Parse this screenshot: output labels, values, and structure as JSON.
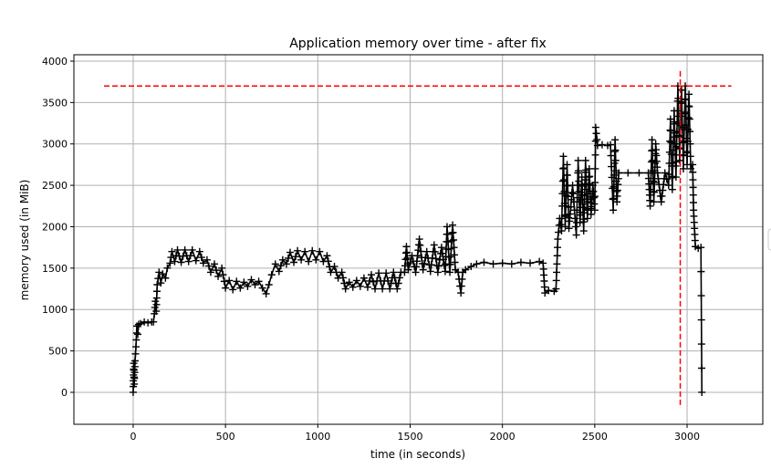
{
  "chart_data": {
    "type": "line",
    "title": "Application memory over time - after fix",
    "xlabel": "time (in seconds)",
    "ylabel": "memory used (in MiB)",
    "xlim": [
      -321,
      3410
    ],
    "ylim": [
      -386,
      4077
    ],
    "xticks": [
      0,
      500,
      1000,
      1500,
      2000,
      2500,
      3000
    ],
    "yticks": [
      0,
      500,
      1000,
      1500,
      2000,
      2500,
      3000,
      3500,
      4000
    ],
    "grid": true,
    "marker": "+",
    "colors": {
      "series": "#000000",
      "reference": "#ff0000",
      "grid": "#b0b0b0"
    },
    "series": [
      {
        "points": [
          [
            0,
            0
          ],
          [
            3,
            350
          ],
          [
            6,
            100
          ],
          [
            10,
            380
          ],
          [
            15,
            550
          ],
          [
            20,
            800
          ],
          [
            25,
            700
          ],
          [
            30,
            820
          ],
          [
            40,
            830
          ],
          [
            60,
            850
          ],
          [
            80,
            840
          ],
          [
            100,
            850
          ],
          [
            110,
            850
          ],
          [
            115,
            950
          ],
          [
            120,
            1100
          ],
          [
            125,
            980
          ],
          [
            130,
            1300
          ],
          [
            140,
            1450
          ],
          [
            150,
            1320
          ],
          [
            160,
            1430
          ],
          [
            175,
            1380
          ],
          [
            185,
            1500
          ],
          [
            200,
            1560
          ],
          [
            210,
            1700
          ],
          [
            225,
            1580
          ],
          [
            240,
            1720
          ],
          [
            260,
            1570
          ],
          [
            280,
            1720
          ],
          [
            300,
            1580
          ],
          [
            320,
            1720
          ],
          [
            340,
            1590
          ],
          [
            360,
            1700
          ],
          [
            380,
            1560
          ],
          [
            400,
            1600
          ],
          [
            420,
            1450
          ],
          [
            440,
            1550
          ],
          [
            460,
            1400
          ],
          [
            480,
            1500
          ],
          [
            500,
            1260
          ],
          [
            520,
            1350
          ],
          [
            540,
            1240
          ],
          [
            560,
            1340
          ],
          [
            580,
            1260
          ],
          [
            600,
            1330
          ],
          [
            620,
            1280
          ],
          [
            640,
            1360
          ],
          [
            660,
            1300
          ],
          [
            680,
            1340
          ],
          [
            700,
            1260
          ],
          [
            720,
            1190
          ],
          [
            735,
            1300
          ],
          [
            750,
            1420
          ],
          [
            770,
            1550
          ],
          [
            790,
            1460
          ],
          [
            810,
            1600
          ],
          [
            830,
            1550
          ],
          [
            850,
            1690
          ],
          [
            870,
            1570
          ],
          [
            890,
            1710
          ],
          [
            910,
            1600
          ],
          [
            930,
            1700
          ],
          [
            950,
            1580
          ],
          [
            970,
            1710
          ],
          [
            990,
            1600
          ],
          [
            1010,
            1700
          ],
          [
            1030,
            1580
          ],
          [
            1050,
            1650
          ],
          [
            1070,
            1450
          ],
          [
            1090,
            1520
          ],
          [
            1110,
            1380
          ],
          [
            1130,
            1450
          ],
          [
            1150,
            1250
          ],
          [
            1170,
            1330
          ],
          [
            1190,
            1270
          ],
          [
            1210,
            1350
          ],
          [
            1230,
            1280
          ],
          [
            1250,
            1380
          ],
          [
            1270,
            1270
          ],
          [
            1290,
            1420
          ],
          [
            1310,
            1250
          ],
          [
            1330,
            1440
          ],
          [
            1350,
            1250
          ],
          [
            1370,
            1440
          ],
          [
            1390,
            1250
          ],
          [
            1410,
            1450
          ],
          [
            1430,
            1250
          ],
          [
            1450,
            1450
          ],
          [
            1470,
            1450
          ],
          [
            1480,
            1760
          ],
          [
            1490,
            1480
          ],
          [
            1510,
            1650
          ],
          [
            1530,
            1450
          ],
          [
            1550,
            1850
          ],
          [
            1570,
            1480
          ],
          [
            1590,
            1700
          ],
          [
            1610,
            1460
          ],
          [
            1630,
            1780
          ],
          [
            1650,
            1450
          ],
          [
            1670,
            1750
          ],
          [
            1690,
            1460
          ],
          [
            1700,
            2000
          ],
          [
            1715,
            1450
          ],
          [
            1730,
            2020
          ],
          [
            1745,
            1480
          ],
          [
            1760,
            1450
          ],
          [
            1775,
            1200
          ],
          [
            1785,
            1450
          ],
          [
            1800,
            1480
          ],
          [
            1830,
            1520
          ],
          [
            1860,
            1550
          ],
          [
            1900,
            1570
          ],
          [
            1950,
            1550
          ],
          [
            2000,
            1560
          ],
          [
            2050,
            1550
          ],
          [
            2100,
            1570
          ],
          [
            2150,
            1560
          ],
          [
            2200,
            1580
          ],
          [
            2220,
            1560
          ],
          [
            2230,
            1200
          ],
          [
            2250,
            1230
          ],
          [
            2280,
            1220
          ],
          [
            2290,
            1250
          ],
          [
            2300,
            1850
          ],
          [
            2310,
            2100
          ],
          [
            2320,
            1950
          ],
          [
            2330,
            2850
          ],
          [
            2340,
            2000
          ],
          [
            2350,
            2750
          ],
          [
            2360,
            1980
          ],
          [
            2380,
            2500
          ],
          [
            2400,
            1900
          ],
          [
            2410,
            2800
          ],
          [
            2420,
            2050
          ],
          [
            2430,
            2600
          ],
          [
            2440,
            1950
          ],
          [
            2450,
            2800
          ],
          [
            2460,
            2100
          ],
          [
            2470,
            2700
          ],
          [
            2480,
            2150
          ],
          [
            2490,
            2500
          ],
          [
            2500,
            2200
          ],
          [
            2505,
            3200
          ],
          [
            2515,
            2980
          ],
          [
            2540,
            2990
          ],
          [
            2570,
            2980
          ],
          [
            2585,
            2990
          ],
          [
            2600,
            2200
          ],
          [
            2610,
            3050
          ],
          [
            2620,
            2300
          ],
          [
            2630,
            2650
          ],
          [
            2680,
            2650
          ],
          [
            2740,
            2650
          ],
          [
            2790,
            2650
          ],
          [
            2800,
            2250
          ],
          [
            2810,
            3050
          ],
          [
            2820,
            2300
          ],
          [
            2830,
            3000
          ],
          [
            2840,
            2650
          ],
          [
            2860,
            2300
          ],
          [
            2880,
            2650
          ],
          [
            2900,
            2500
          ],
          [
            2910,
            3300
          ],
          [
            2920,
            2450
          ],
          [
            2930,
            3400
          ],
          [
            2940,
            2600
          ],
          [
            2950,
            3700
          ],
          [
            2960,
            2800
          ],
          [
            2970,
            3650
          ],
          [
            2980,
            2700
          ],
          [
            2990,
            3700
          ],
          [
            3000,
            2750
          ],
          [
            3010,
            3600
          ],
          [
            3020,
            2700
          ],
          [
            3030,
            2750
          ],
          [
            3035,
            2200
          ],
          [
            3045,
            1760
          ],
          [
            3060,
            1740
          ],
          [
            3075,
            1750
          ],
          [
            3080,
            0
          ]
        ]
      }
    ],
    "reference_lines": [
      {
        "orientation": "horizontal",
        "y": 3700,
        "x_from": -158,
        "x_to": 3240
      },
      {
        "orientation": "vertical",
        "x": 2963,
        "y_from": -187,
        "y_to": 3880
      }
    ]
  }
}
